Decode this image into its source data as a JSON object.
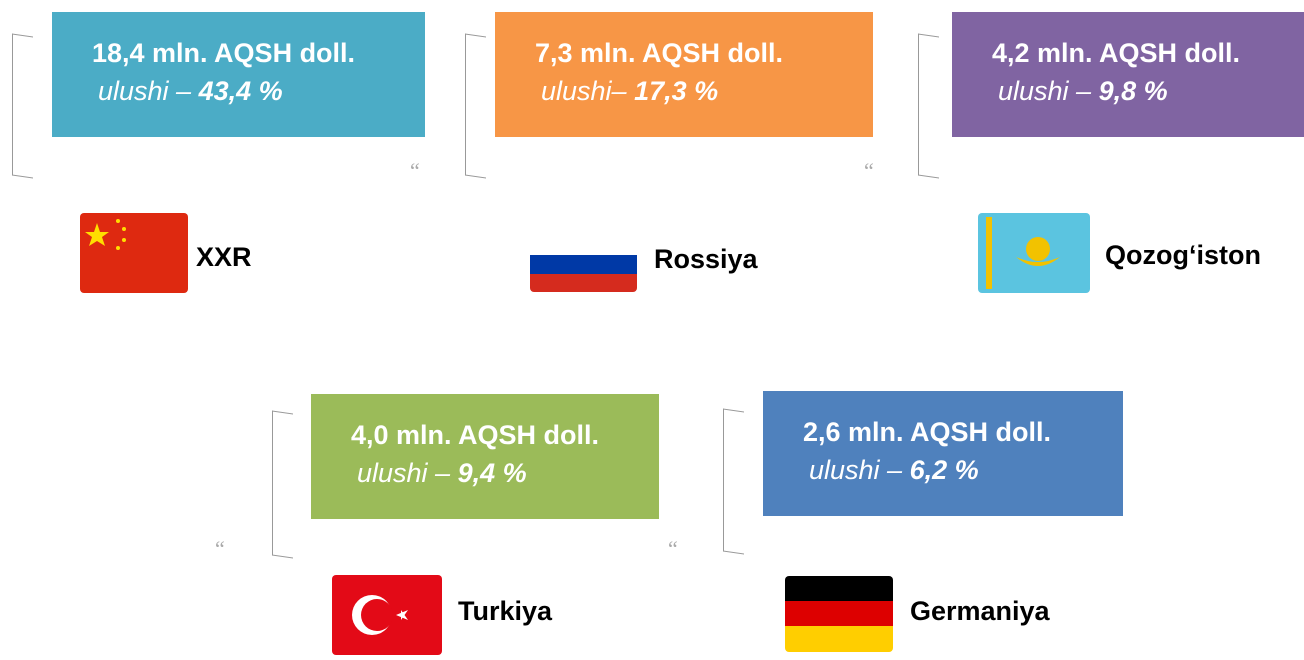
{
  "items": [
    {
      "amount": "18,4 mln. AQSH doll.",
      "share_label": "ulushi –",
      "share": "43,4 %",
      "country": "XXR",
      "color": "#4bacc6"
    },
    {
      "amount": "7,3 mln. AQSH doll.",
      "share_label": "ulushi–",
      "share": "17,3 %",
      "country": "Rossiya",
      "color": "#f79646"
    },
    {
      "amount": "4,2 mln. AQSH doll.",
      "share_label": "ulushi –",
      "share": "9,8 %",
      "country": "Qozog‘iston",
      "color": "#8064a2"
    },
    {
      "amount": "4,0 mln. AQSH doll.",
      "share_label": "ulushi –",
      "share": "9,4 %",
      "country": "Turkiya",
      "color": "#9bbb59"
    },
    {
      "amount": "2,6 mln. AQSH doll.",
      "share_label": "ulushi –",
      "share": "6,2 %",
      "country": "Germaniya",
      "color": "#4f81bd"
    }
  ],
  "quotes": [
    "“",
    "“",
    "“",
    "“"
  ]
}
